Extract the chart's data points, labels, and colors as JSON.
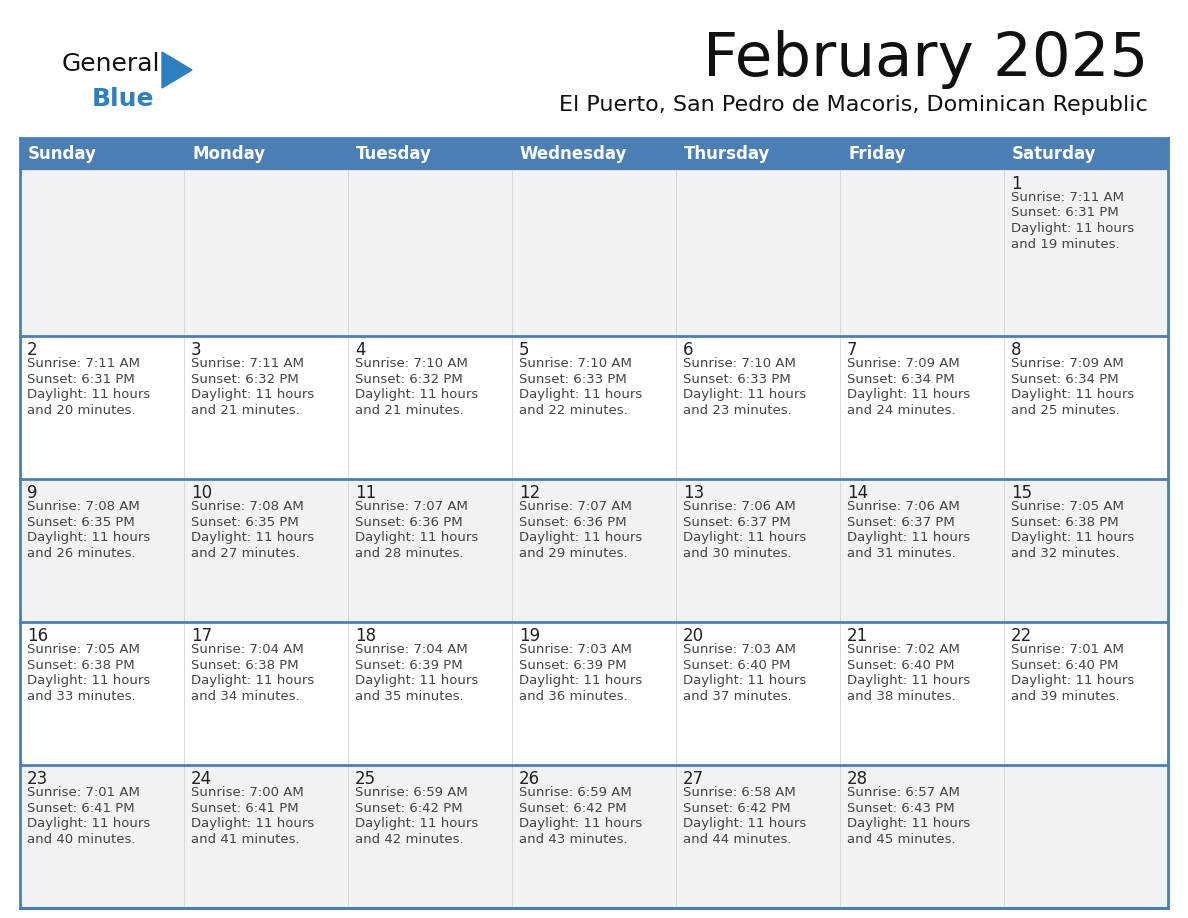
{
  "title": "February 2025",
  "subtitle": "El Puerto, San Pedro de Macoris, Dominican Republic",
  "days_of_week": [
    "Sunday",
    "Monday",
    "Tuesday",
    "Wednesday",
    "Thursday",
    "Friday",
    "Saturday"
  ],
  "header_bg": "#4a7eb5",
  "header_text": "#ffffff",
  "cell_bg_odd": "#f2f2f2",
  "cell_bg_even": "#ffffff",
  "border_color": "#4a7eb5",
  "cell_border_color": "#cccccc",
  "text_color": "#444444",
  "day_num_color": "#222222",
  "title_color": "#111111",
  "subtitle_color": "#111111",
  "logo_general_color": "#111111",
  "logo_blue_color": "#2e7fc0",
  "logo_triangle_color": "#2e7fc0",
  "calendar_data": [
    {
      "day": 1,
      "col": 6,
      "row": 0,
      "sunrise": "7:11 AM",
      "sunset": "6:31 PM",
      "daylight_h": "11 hours",
      "daylight_m": "19 minutes."
    },
    {
      "day": 2,
      "col": 0,
      "row": 1,
      "sunrise": "7:11 AM",
      "sunset": "6:31 PM",
      "daylight_h": "11 hours",
      "daylight_m": "20 minutes."
    },
    {
      "day": 3,
      "col": 1,
      "row": 1,
      "sunrise": "7:11 AM",
      "sunset": "6:32 PM",
      "daylight_h": "11 hours",
      "daylight_m": "21 minutes."
    },
    {
      "day": 4,
      "col": 2,
      "row": 1,
      "sunrise": "7:10 AM",
      "sunset": "6:32 PM",
      "daylight_h": "11 hours",
      "daylight_m": "21 minutes."
    },
    {
      "day": 5,
      "col": 3,
      "row": 1,
      "sunrise": "7:10 AM",
      "sunset": "6:33 PM",
      "daylight_h": "11 hours",
      "daylight_m": "22 minutes."
    },
    {
      "day": 6,
      "col": 4,
      "row": 1,
      "sunrise": "7:10 AM",
      "sunset": "6:33 PM",
      "daylight_h": "11 hours",
      "daylight_m": "23 minutes."
    },
    {
      "day": 7,
      "col": 5,
      "row": 1,
      "sunrise": "7:09 AM",
      "sunset": "6:34 PM",
      "daylight_h": "11 hours",
      "daylight_m": "24 minutes."
    },
    {
      "day": 8,
      "col": 6,
      "row": 1,
      "sunrise": "7:09 AM",
      "sunset": "6:34 PM",
      "daylight_h": "11 hours",
      "daylight_m": "25 minutes."
    },
    {
      "day": 9,
      "col": 0,
      "row": 2,
      "sunrise": "7:08 AM",
      "sunset": "6:35 PM",
      "daylight_h": "11 hours",
      "daylight_m": "26 minutes."
    },
    {
      "day": 10,
      "col": 1,
      "row": 2,
      "sunrise": "7:08 AM",
      "sunset": "6:35 PM",
      "daylight_h": "11 hours",
      "daylight_m": "27 minutes."
    },
    {
      "day": 11,
      "col": 2,
      "row": 2,
      "sunrise": "7:07 AM",
      "sunset": "6:36 PM",
      "daylight_h": "11 hours",
      "daylight_m": "28 minutes."
    },
    {
      "day": 12,
      "col": 3,
      "row": 2,
      "sunrise": "7:07 AM",
      "sunset": "6:36 PM",
      "daylight_h": "11 hours",
      "daylight_m": "29 minutes."
    },
    {
      "day": 13,
      "col": 4,
      "row": 2,
      "sunrise": "7:06 AM",
      "sunset": "6:37 PM",
      "daylight_h": "11 hours",
      "daylight_m": "30 minutes."
    },
    {
      "day": 14,
      "col": 5,
      "row": 2,
      "sunrise": "7:06 AM",
      "sunset": "6:37 PM",
      "daylight_h": "11 hours",
      "daylight_m": "31 minutes."
    },
    {
      "day": 15,
      "col": 6,
      "row": 2,
      "sunrise": "7:05 AM",
      "sunset": "6:38 PM",
      "daylight_h": "11 hours",
      "daylight_m": "32 minutes."
    },
    {
      "day": 16,
      "col": 0,
      "row": 3,
      "sunrise": "7:05 AM",
      "sunset": "6:38 PM",
      "daylight_h": "11 hours",
      "daylight_m": "33 minutes."
    },
    {
      "day": 17,
      "col": 1,
      "row": 3,
      "sunrise": "7:04 AM",
      "sunset": "6:38 PM",
      "daylight_h": "11 hours",
      "daylight_m": "34 minutes."
    },
    {
      "day": 18,
      "col": 2,
      "row": 3,
      "sunrise": "7:04 AM",
      "sunset": "6:39 PM",
      "daylight_h": "11 hours",
      "daylight_m": "35 minutes."
    },
    {
      "day": 19,
      "col": 3,
      "row": 3,
      "sunrise": "7:03 AM",
      "sunset": "6:39 PM",
      "daylight_h": "11 hours",
      "daylight_m": "36 minutes."
    },
    {
      "day": 20,
      "col": 4,
      "row": 3,
      "sunrise": "7:03 AM",
      "sunset": "6:40 PM",
      "daylight_h": "11 hours",
      "daylight_m": "37 minutes."
    },
    {
      "day": 21,
      "col": 5,
      "row": 3,
      "sunrise": "7:02 AM",
      "sunset": "6:40 PM",
      "daylight_h": "11 hours",
      "daylight_m": "38 minutes."
    },
    {
      "day": 22,
      "col": 6,
      "row": 3,
      "sunrise": "7:01 AM",
      "sunset": "6:40 PM",
      "daylight_h": "11 hours",
      "daylight_m": "39 minutes."
    },
    {
      "day": 23,
      "col": 0,
      "row": 4,
      "sunrise": "7:01 AM",
      "sunset": "6:41 PM",
      "daylight_h": "11 hours",
      "daylight_m": "40 minutes."
    },
    {
      "day": 24,
      "col": 1,
      "row": 4,
      "sunrise": "7:00 AM",
      "sunset": "6:41 PM",
      "daylight_h": "11 hours",
      "daylight_m": "41 minutes."
    },
    {
      "day": 25,
      "col": 2,
      "row": 4,
      "sunrise": "6:59 AM",
      "sunset": "6:42 PM",
      "daylight_h": "11 hours",
      "daylight_m": "42 minutes."
    },
    {
      "day": 26,
      "col": 3,
      "row": 4,
      "sunrise": "6:59 AM",
      "sunset": "6:42 PM",
      "daylight_h": "11 hours",
      "daylight_m": "43 minutes."
    },
    {
      "day": 27,
      "col": 4,
      "row": 4,
      "sunrise": "6:58 AM",
      "sunset": "6:42 PM",
      "daylight_h": "11 hours",
      "daylight_m": "44 minutes."
    },
    {
      "day": 28,
      "col": 5,
      "row": 4,
      "sunrise": "6:57 AM",
      "sunset": "6:43 PM",
      "daylight_h": "11 hours",
      "daylight_m": "45 minutes."
    }
  ]
}
